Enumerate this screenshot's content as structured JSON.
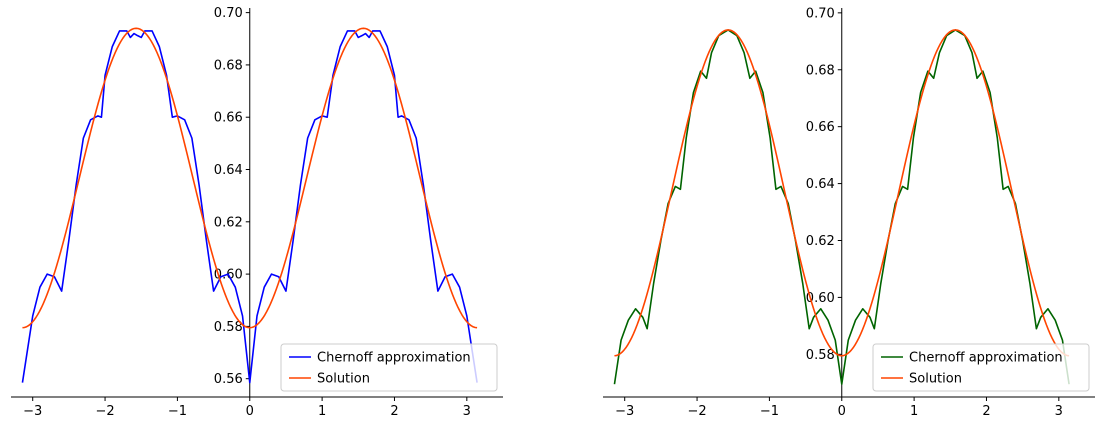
{
  "chart_data": [
    {
      "type": "line",
      "title": "",
      "xlabel": "",
      "ylabel": "",
      "xlim": [
        -3.3,
        3.5
      ],
      "ylim": [
        0.553,
        0.701
      ],
      "xticks": [
        -3,
        -2,
        -1,
        0,
        1,
        2,
        3
      ],
      "xtick_labels": [
        "−3",
        "−2",
        "−1",
        "0",
        "1",
        "2",
        "3"
      ],
      "yticks": [
        0.56,
        0.58,
        0.6,
        0.62,
        0.64,
        0.66,
        0.68,
        0.7
      ],
      "ytick_labels": [
        "0.56",
        "0.58",
        "0.60",
        "0.62",
        "0.64",
        "0.66",
        "0.68",
        "0.70"
      ],
      "spines": "centered at x=0 and bottom",
      "grid": false,
      "legend_position": "bottom-right",
      "series": [
        {
          "name": "Chernoff approximation",
          "color": "#0000ff",
          "points": [
            [
              -3.1416,
              0.5585
            ],
            [
              -3.0,
              0.584
            ],
            [
              -2.9,
              0.595
            ],
            [
              -2.8,
              0.6
            ],
            [
              -2.7,
              0.599
            ],
            [
              -2.6,
              0.5935
            ],
            [
              -2.5,
              0.613
            ],
            [
              -2.4,
              0.634
            ],
            [
              -2.3,
              0.652
            ],
            [
              -2.2,
              0.659
            ],
            [
              -2.1,
              0.6605
            ],
            [
              -2.05,
              0.66
            ],
            [
              -2.0,
              0.676
            ],
            [
              -1.9,
              0.687
            ],
            [
              -1.8,
              0.693
            ],
            [
              -1.7,
              0.693
            ],
            [
              -1.65,
              0.6905
            ],
            [
              -1.6,
              0.692
            ],
            [
              -1.55,
              0.6912
            ],
            [
              -1.5,
              0.6905
            ],
            [
              -1.45,
              0.693
            ],
            [
              -1.35,
              0.693
            ],
            [
              -1.25,
              0.687
            ],
            [
              -1.15,
              0.676
            ],
            [
              -1.07,
              0.66
            ],
            [
              -1.0,
              0.6605
            ],
            [
              -0.9,
              0.659
            ],
            [
              -0.8,
              0.652
            ],
            [
              -0.7,
              0.634
            ],
            [
              -0.6,
              0.613
            ],
            [
              -0.5,
              0.5935
            ],
            [
              -0.4,
              0.599
            ],
            [
              -0.3,
              0.6
            ],
            [
              -0.2,
              0.595
            ],
            [
              -0.1,
              0.584
            ],
            [
              0.0,
              0.5585
            ],
            [
              0.1,
              0.584
            ],
            [
              0.2,
              0.595
            ],
            [
              0.3,
              0.6
            ],
            [
              0.4,
              0.599
            ],
            [
              0.5,
              0.5935
            ],
            [
              0.6,
              0.613
            ],
            [
              0.7,
              0.634
            ],
            [
              0.8,
              0.652
            ],
            [
              0.9,
              0.659
            ],
            [
              1.0,
              0.6605
            ],
            [
              1.07,
              0.66
            ],
            [
              1.15,
              0.676
            ],
            [
              1.25,
              0.687
            ],
            [
              1.35,
              0.693
            ],
            [
              1.45,
              0.693
            ],
            [
              1.5,
              0.6905
            ],
            [
              1.55,
              0.6912
            ],
            [
              1.6,
              0.692
            ],
            [
              1.65,
              0.6905
            ],
            [
              1.7,
              0.693
            ],
            [
              1.8,
              0.693
            ],
            [
              1.9,
              0.687
            ],
            [
              2.0,
              0.676
            ],
            [
              2.05,
              0.66
            ],
            [
              2.1,
              0.6605
            ],
            [
              2.2,
              0.659
            ],
            [
              2.3,
              0.652
            ],
            [
              2.4,
              0.634
            ],
            [
              2.5,
              0.613
            ],
            [
              2.6,
              0.5935
            ],
            [
              2.7,
              0.599
            ],
            [
              2.8,
              0.6
            ],
            [
              2.9,
              0.595
            ],
            [
              3.0,
              0.584
            ],
            [
              3.1416,
              0.5585
            ]
          ]
        },
        {
          "name": "Solution",
          "color": "#ff4500",
          "function": "0.5795 + 0.1145 * sin(x)^2"
        }
      ]
    },
    {
      "type": "line",
      "title": "",
      "xlabel": "",
      "ylabel": "",
      "xlim": [
        -3.3,
        3.5
      ],
      "ylim": [
        0.565,
        0.701
      ],
      "xticks": [
        -3,
        -2,
        -1,
        0,
        1,
        2,
        3
      ],
      "xtick_labels": [
        "−3",
        "−2",
        "−1",
        "0",
        "1",
        "2",
        "3"
      ],
      "yticks": [
        0.58,
        0.6,
        0.62,
        0.64,
        0.66,
        0.68,
        0.7
      ],
      "ytick_labels": [
        "0.58",
        "0.60",
        "0.62",
        "0.64",
        "0.66",
        "0.68",
        "0.70"
      ],
      "spines": "centered at x=0 and bottom",
      "grid": false,
      "legend_position": "bottom-right",
      "series": [
        {
          "name": "Chernoff approximation",
          "color": "#006400",
          "points": [
            [
              -3.1416,
              0.5695
            ],
            [
              -3.05,
              0.585
            ],
            [
              -2.95,
              0.592
            ],
            [
              -2.85,
              0.596
            ],
            [
              -2.75,
              0.593
            ],
            [
              -2.69,
              0.589
            ],
            [
              -2.6,
              0.605
            ],
            [
              -2.5,
              0.62
            ],
            [
              -2.4,
              0.633
            ],
            [
              -2.3,
              0.639
            ],
            [
              -2.23,
              0.638
            ],
            [
              -2.15,
              0.656
            ],
            [
              -2.05,
              0.672
            ],
            [
              -1.95,
              0.6795
            ],
            [
              -1.87,
              0.677
            ],
            [
              -1.8,
              0.686
            ],
            [
              -1.7,
              0.692
            ],
            [
              -1.5708,
              0.694
            ],
            [
              -1.45,
              0.692
            ],
            [
              -1.35,
              0.686
            ],
            [
              -1.27,
              0.677
            ],
            [
              -1.19,
              0.6795
            ],
            [
              -1.09,
              0.672
            ],
            [
              -0.99,
              0.656
            ],
            [
              -0.91,
              0.638
            ],
            [
              -0.84,
              0.639
            ],
            [
              -0.74,
              0.633
            ],
            [
              -0.64,
              0.62
            ],
            [
              -0.54,
              0.605
            ],
            [
              -0.45,
              0.589
            ],
            [
              -0.39,
              0.593
            ],
            [
              -0.29,
              0.596
            ],
            [
              -0.19,
              0.592
            ],
            [
              -0.09,
              0.585
            ],
            [
              0.0,
              0.5695
            ],
            [
              0.09,
              0.585
            ],
            [
              0.19,
              0.592
            ],
            [
              0.29,
              0.596
            ],
            [
              0.39,
              0.593
            ],
            [
              0.45,
              0.589
            ],
            [
              0.54,
              0.605
            ],
            [
              0.64,
              0.62
            ],
            [
              0.74,
              0.633
            ],
            [
              0.84,
              0.639
            ],
            [
              0.91,
              0.638
            ],
            [
              0.99,
              0.656
            ],
            [
              1.09,
              0.672
            ],
            [
              1.19,
              0.6795
            ],
            [
              1.27,
              0.677
            ],
            [
              1.35,
              0.686
            ],
            [
              1.45,
              0.692
            ],
            [
              1.5708,
              0.694
            ],
            [
              1.7,
              0.692
            ],
            [
              1.8,
              0.686
            ],
            [
              1.87,
              0.677
            ],
            [
              1.95,
              0.6795
            ],
            [
              2.05,
              0.672
            ],
            [
              2.15,
              0.656
            ],
            [
              2.23,
              0.638
            ],
            [
              2.3,
              0.639
            ],
            [
              2.4,
              0.633
            ],
            [
              2.5,
              0.62
            ],
            [
              2.6,
              0.605
            ],
            [
              2.69,
              0.589
            ],
            [
              2.75,
              0.593
            ],
            [
              2.85,
              0.596
            ],
            [
              2.95,
              0.592
            ],
            [
              3.05,
              0.585
            ],
            [
              3.1416,
              0.5695
            ]
          ]
        },
        {
          "name": "Solution",
          "color": "#ff4500",
          "function": "0.5795 + 0.1145 * sin(x)^2"
        }
      ]
    }
  ]
}
